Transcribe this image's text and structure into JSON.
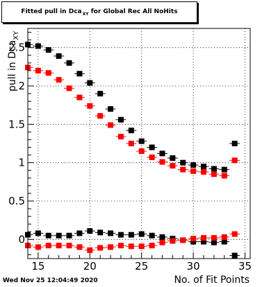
{
  "title": {
    "prefix": "Fitted pull in Dca",
    "subscript": "XY",
    "suffix": " for Global Rec All NoHits"
  },
  "footer": {
    "timestamp": "Wed Nov 25 12:04:49 2020"
  },
  "colors": {
    "black_series": "#000000",
    "red_series": "#ff0000",
    "grid": "#000000",
    "frame": "#000000"
  },
  "chart_data": {
    "type": "scatter",
    "xlabel": "No. of Fit Points",
    "ylabel": {
      "prefix": "pull in Dca",
      "subscript": "XY"
    },
    "xlim": [
      14,
      35.5
    ],
    "ylim": [
      -0.25,
      2.75
    ],
    "xticks": [
      15,
      20,
      25,
      30,
      35
    ],
    "yticks": [
      0,
      0.5,
      1,
      1.5,
      2,
      2.5
    ],
    "grid": true,
    "series": [
      {
        "color": "#000000",
        "x": [
          14,
          15,
          16,
          17,
          18,
          19,
          20,
          21,
          22,
          23,
          24,
          25,
          26,
          27,
          28,
          29,
          30,
          31,
          32,
          33,
          34
        ],
        "y": [
          2.54,
          2.52,
          2.47,
          2.39,
          2.3,
          2.16,
          2.04,
          1.9,
          1.7,
          1.56,
          1.42,
          1.28,
          1.2,
          1.12,
          1.06,
          1.0,
          0.97,
          0.95,
          0.92,
          0.91,
          1.25
        ]
      },
      {
        "color": "#ff0000",
        "x": [
          14,
          15,
          16,
          17,
          18,
          19,
          20,
          21,
          22,
          23,
          24,
          25,
          26,
          27,
          28,
          29,
          30,
          31,
          32,
          33,
          34
        ],
        "y": [
          2.24,
          2.2,
          2.17,
          2.08,
          1.97,
          1.85,
          1.74,
          1.61,
          1.49,
          1.34,
          1.25,
          1.15,
          1.07,
          1.01,
          0.96,
          0.91,
          0.89,
          0.88,
          0.85,
          0.83,
          1.03
        ]
      },
      {
        "color": "#000000",
        "x": [
          14,
          15,
          16,
          17,
          18,
          19,
          20,
          21,
          22,
          23,
          24,
          25,
          26,
          27,
          28,
          29,
          30,
          31,
          32,
          33,
          34
        ],
        "y": [
          0.06,
          0.08,
          0.05,
          0.05,
          0.05,
          0.08,
          0.11,
          0.09,
          0.08,
          0.06,
          0.06,
          0.07,
          0.05,
          0.03,
          0.01,
          -0.01,
          -0.03,
          -0.03,
          -0.04,
          -0.03,
          -0.21
        ]
      },
      {
        "color": "#ff0000",
        "x": [
          14,
          15,
          16,
          17,
          18,
          19,
          20,
          21,
          22,
          23,
          24,
          25,
          26,
          27,
          28,
          29,
          30,
          31,
          32,
          33,
          34
        ],
        "y": [
          -0.08,
          -0.1,
          -0.08,
          -0.08,
          -0.08,
          -0.1,
          -0.14,
          -0.11,
          -0.1,
          -0.08,
          -0.09,
          -0.09,
          -0.08,
          -0.04,
          -0.02,
          -0.01,
          0.01,
          0.02,
          0.02,
          0.03,
          0.07
        ]
      }
    ]
  }
}
